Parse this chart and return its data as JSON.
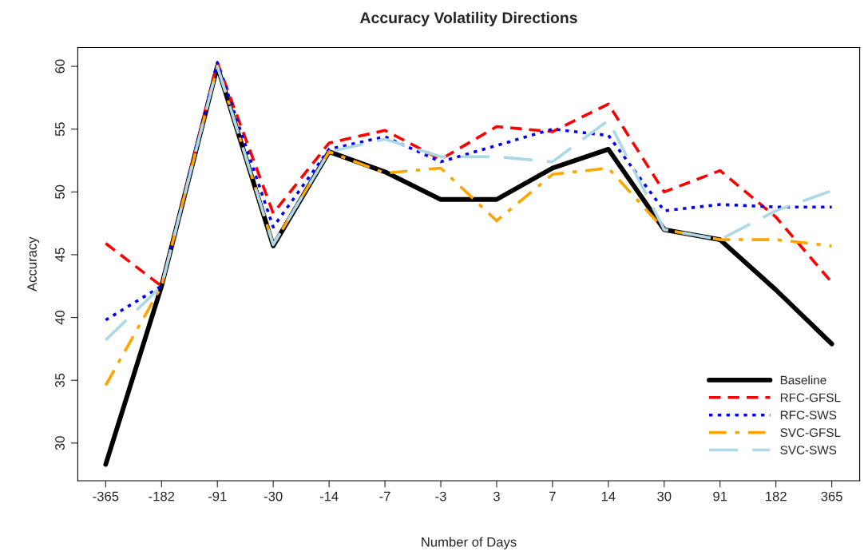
{
  "chart_data": {
    "type": "line",
    "title": "Accuracy Volatility Directions",
    "xlabel": "Number of Days",
    "ylabel": "Accuracy",
    "categories": [
      "-365",
      "-182",
      "-91",
      "-30",
      "-14",
      "-7",
      "-3",
      "3",
      "7",
      "14",
      "30",
      "91",
      "182",
      "365"
    ],
    "ylim": [
      27,
      61.5
    ],
    "yticks": [
      30,
      35,
      40,
      45,
      50,
      55,
      60
    ],
    "grid": false,
    "legend": "bottom right",
    "series": [
      {
        "name": "Baseline",
        "color": "#000000",
        "line_style": "solid",
        "values": [
          28.3,
          42.5,
          60.0,
          45.7,
          53.2,
          51.6,
          49.4,
          49.4,
          51.9,
          53.4,
          47.0,
          46.2,
          42.2,
          37.9
        ]
      },
      {
        "name": "RFC-GFSL",
        "color": "#ff0000",
        "line_style": "dashed",
        "values": [
          45.9,
          42.5,
          60.3,
          48.3,
          53.9,
          54.9,
          52.6,
          55.2,
          54.8,
          57.0,
          50.0,
          51.7,
          48.0,
          42.8
        ]
      },
      {
        "name": "RFC-SWS",
        "color": "#0000ff",
        "line_style": "dotted",
        "values": [
          39.8,
          42.5,
          60.3,
          47.2,
          53.4,
          54.4,
          52.4,
          53.7,
          55.0,
          54.5,
          48.5,
          49.0,
          48.8,
          48.8
        ]
      },
      {
        "name": "SVC-GFSL",
        "color": "#ffa500",
        "line_style": "dashdot",
        "values": [
          34.6,
          42.5,
          60.0,
          45.8,
          53.2,
          51.5,
          51.9,
          47.7,
          51.4,
          51.9,
          47.0,
          46.2,
          46.2,
          45.7
        ]
      },
      {
        "name": "SVC-SWS",
        "color": "#add8e6",
        "line_style": "longdash",
        "values": [
          38.2,
          42.5,
          60.0,
          45.8,
          53.2,
          54.2,
          52.8,
          52.8,
          52.4,
          55.7,
          47.0,
          46.2,
          48.5,
          50.1
        ]
      }
    ]
  }
}
